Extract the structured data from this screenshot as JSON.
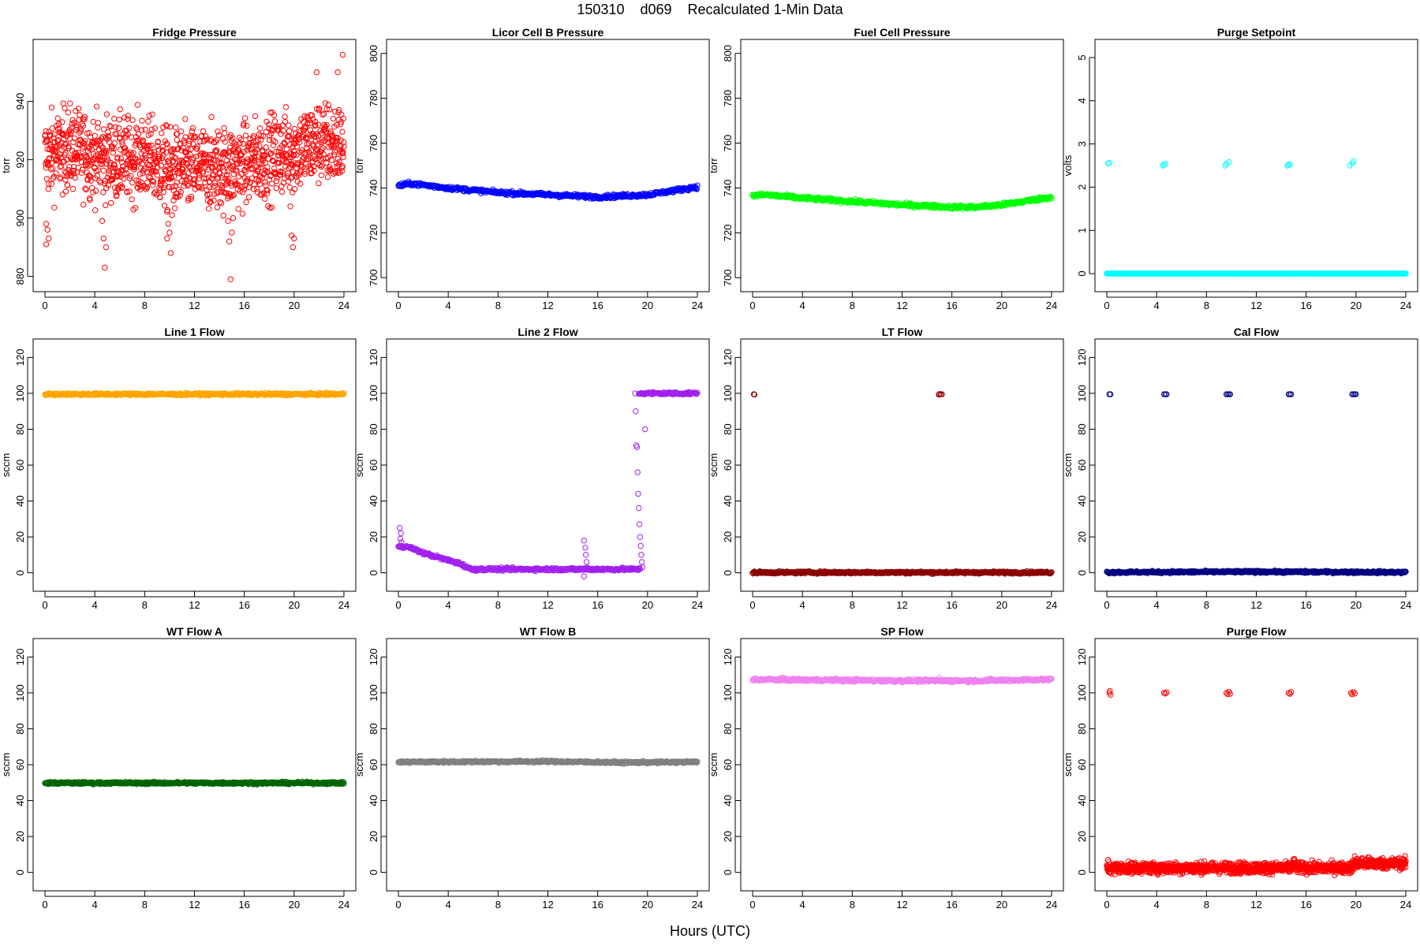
{
  "figure": {
    "title": "150310    d069    Recalculated 1-Min Data",
    "xlabel": "Hours (UTC)"
  },
  "chart_data": [
    {
      "type": "scatter",
      "title": "Fridge Pressure",
      "ylabel": "torr",
      "color": "#FF0000",
      "xlim": [
        0,
        24
      ],
      "ylim": [
        878,
        958
      ],
      "yticks": [
        880,
        900,
        920,
        940
      ],
      "xticks": [
        0,
        4,
        8,
        12,
        16,
        20,
        24
      ],
      "baseline": [
        [
          0,
          921
        ],
        [
          2,
          924
        ],
        [
          4,
          921
        ],
        [
          6,
          920
        ],
        [
          8,
          921
        ],
        [
          10,
          916
        ],
        [
          12,
          917
        ],
        [
          14,
          917
        ],
        [
          16,
          918
        ],
        [
          18,
          921
        ],
        [
          20,
          923
        ],
        [
          22,
          926
        ],
        [
          24,
          925
        ]
      ],
      "spread": 7,
      "outliers": [
        [
          0.1,
          891
        ],
        [
          0.1,
          898
        ],
        [
          0.2,
          896
        ],
        [
          0.3,
          893
        ],
        [
          4.6,
          899
        ],
        [
          4.7,
          893
        ],
        [
          4.8,
          883
        ],
        [
          4.9,
          890
        ],
        [
          9.8,
          893
        ],
        [
          9.9,
          898
        ],
        [
          10,
          895
        ],
        [
          10.1,
          888
        ],
        [
          10.2,
          901
        ],
        [
          14.7,
          899
        ],
        [
          14.8,
          892
        ],
        [
          14.9,
          879
        ],
        [
          15,
          895
        ],
        [
          15.1,
          900
        ],
        [
          19.7,
          904
        ],
        [
          19.8,
          894
        ],
        [
          19.9,
          890
        ],
        [
          20,
          893
        ],
        [
          21.8,
          950
        ],
        [
          23.5,
          950
        ],
        [
          23.9,
          956
        ]
      ]
    },
    {
      "type": "scatter",
      "title": "Licor Cell B Pressure",
      "ylabel": "torr",
      "color": "#0000FF",
      "xlim": [
        0,
        24
      ],
      "ylim": [
        698,
        802
      ],
      "yticks": [
        700,
        720,
        740,
        760,
        780,
        800
      ],
      "xticks": [
        0,
        4,
        8,
        12,
        16,
        20,
        24
      ],
      "baseline": [
        [
          0,
          741
        ],
        [
          1,
          742
        ],
        [
          4,
          740
        ],
        [
          8,
          738
        ],
        [
          12,
          737
        ],
        [
          16,
          736
        ],
        [
          18,
          736.5
        ],
        [
          20,
          737
        ],
        [
          24,
          740.5
        ]
      ],
      "spread": 0.4,
      "outliers": []
    },
    {
      "type": "scatter",
      "title": "Fuel Cell Pressure",
      "ylabel": "torr",
      "color": "#00FF00",
      "xlim": [
        0,
        24
      ],
      "ylim": [
        698,
        802
      ],
      "yticks": [
        700,
        720,
        740,
        760,
        780,
        800
      ],
      "xticks": [
        0,
        4,
        8,
        12,
        16,
        20,
        24
      ],
      "baseline": [
        [
          0,
          736.5
        ],
        [
          1,
          737
        ],
        [
          4,
          735.5
        ],
        [
          8,
          734
        ],
        [
          12,
          732.5
        ],
        [
          16,
          731.5
        ],
        [
          18,
          731.5
        ],
        [
          20,
          732.5
        ],
        [
          24,
          736
        ]
      ],
      "spread": 0.4,
      "outliers": []
    },
    {
      "type": "scatter",
      "title": "Purge Setpoint",
      "ylabel": "volts",
      "color": "#00FFFF",
      "xlim": [
        0,
        24
      ],
      "ylim": [
        -0.2,
        5.2
      ],
      "yticks": [
        0,
        1,
        2,
        3,
        4,
        5
      ],
      "xticks": [
        0,
        4,
        8,
        12,
        16,
        20,
        24
      ],
      "baseline": [
        [
          0,
          0
        ],
        [
          24,
          0
        ]
      ],
      "spread": 0,
      "outliers": [
        [
          0.1,
          2.55
        ],
        [
          0.2,
          2.56
        ],
        [
          4.5,
          2.5
        ],
        [
          4.6,
          2.52
        ],
        [
          4.7,
          2.54
        ],
        [
          9.5,
          2.5
        ],
        [
          9.6,
          2.54
        ],
        [
          9.8,
          2.58
        ],
        [
          14.5,
          2.5
        ],
        [
          14.6,
          2.52
        ],
        [
          14.7,
          2.53
        ],
        [
          19.5,
          2.5
        ],
        [
          19.7,
          2.55
        ],
        [
          19.8,
          2.6
        ]
      ]
    },
    {
      "type": "scatter",
      "title": "Line 1 Flow",
      "ylabel": "sccm",
      "color": "#FFA500",
      "xlim": [
        0,
        24
      ],
      "ylim": [
        -5,
        125
      ],
      "yticks": [
        0,
        20,
        40,
        60,
        80,
        100,
        120
      ],
      "xticks": [
        0,
        4,
        8,
        12,
        16,
        20,
        24
      ],
      "baseline": [
        [
          0,
          99.5
        ],
        [
          24,
          99.5
        ]
      ],
      "spread": 0.3,
      "outliers": []
    },
    {
      "type": "scatter",
      "title": "Line 2 Flow",
      "ylabel": "sccm",
      "color": "#A020F0",
      "xlim": [
        0,
        24
      ],
      "ylim": [
        -5,
        125
      ],
      "yticks": [
        0,
        20,
        40,
        60,
        80,
        100,
        120
      ],
      "xticks": [
        0,
        4,
        8,
        12,
        16,
        20,
        24
      ],
      "segments": [
        [
          [
            0,
            15
          ],
          [
            1,
            14
          ],
          [
            2,
            11
          ],
          [
            3,
            9
          ],
          [
            4,
            7
          ],
          [
            5,
            5
          ],
          [
            5.8,
            2
          ],
          [
            6,
            2
          ],
          [
            19.4,
            2
          ]
        ],
        [
          [
            19.3,
            100
          ],
          [
            24,
            100
          ]
        ]
      ],
      "spread": 0.4,
      "outliers": [
        [
          0.1,
          25
        ],
        [
          0.2,
          22
        ],
        [
          0.15,
          19
        ],
        [
          0.25,
          17
        ],
        [
          14.9,
          18
        ],
        [
          15,
          14
        ],
        [
          15.05,
          10
        ],
        [
          15.1,
          6
        ],
        [
          15.15,
          3
        ],
        [
          14.9,
          -2
        ],
        [
          19,
          100
        ],
        [
          19.05,
          90
        ],
        [
          19.1,
          71
        ],
        [
          19.15,
          70
        ],
        [
          19.2,
          56
        ],
        [
          19.25,
          44
        ],
        [
          19.3,
          36
        ],
        [
          19.35,
          27
        ],
        [
          19.4,
          20
        ],
        [
          19.45,
          15
        ],
        [
          19.5,
          10
        ],
        [
          19.55,
          6
        ],
        [
          19.6,
          3
        ],
        [
          19.8,
          80
        ]
      ]
    },
    {
      "type": "scatter",
      "title": "LT Flow",
      "ylabel": "sccm",
      "color": "#8B0000",
      "xlim": [
        0,
        24
      ],
      "ylim": [
        -5,
        125
      ],
      "yticks": [
        0,
        20,
        40,
        60,
        80,
        100,
        120
      ],
      "xticks": [
        0,
        4,
        8,
        12,
        16,
        20,
        24
      ],
      "baseline": [
        [
          0,
          0.2
        ],
        [
          24,
          0.2
        ]
      ],
      "spread": 0.3,
      "outliers": [
        [
          0.1,
          99.5
        ],
        [
          0.15,
          99.3
        ],
        [
          15,
          99.6
        ],
        [
          15.1,
          99.4
        ],
        [
          15.2,
          99.5
        ],
        [
          14.95,
          99.3
        ]
      ]
    },
    {
      "type": "scatter",
      "title": "Cal Flow",
      "ylabel": "sccm",
      "color": "#000080",
      "xlim": [
        0,
        24
      ],
      "ylim": [
        -5,
        125
      ],
      "yticks": [
        0,
        20,
        40,
        60,
        80,
        100,
        120
      ],
      "xticks": [
        0,
        4,
        8,
        12,
        16,
        20,
        24
      ],
      "baseline": [
        [
          0,
          0.3
        ],
        [
          12,
          0.6
        ],
        [
          24,
          0.3
        ]
      ],
      "spread": 0.3,
      "outliers": [
        [
          0.2,
          99.5
        ],
        [
          0.3,
          99.5
        ],
        [
          4.6,
          99.5
        ],
        [
          4.7,
          99.5
        ],
        [
          4.8,
          99.5
        ],
        [
          9.6,
          99.5
        ],
        [
          9.7,
          99.5
        ],
        [
          9.8,
          99.5
        ],
        [
          9.9,
          99.5
        ],
        [
          14.6,
          99.5
        ],
        [
          14.7,
          99.5
        ],
        [
          14.8,
          99.5
        ],
        [
          19.7,
          99.5
        ],
        [
          19.8,
          99.5
        ],
        [
          19.9,
          99.5
        ],
        [
          20,
          99.5
        ]
      ]
    },
    {
      "type": "scatter",
      "title": "WT Flow A",
      "ylabel": "sccm",
      "color": "#006400",
      "xlim": [
        0,
        24
      ],
      "ylim": [
        -5,
        125
      ],
      "yticks": [
        0,
        20,
        40,
        60,
        80,
        100,
        120
      ],
      "xticks": [
        0,
        4,
        8,
        12,
        16,
        20,
        24
      ],
      "baseline": [
        [
          0,
          49.8
        ],
        [
          24,
          49.8
        ]
      ],
      "spread": 0.3,
      "outliers": []
    },
    {
      "type": "scatter",
      "title": "WT Flow B",
      "ylabel": "sccm",
      "color": "#808080",
      "xlim": [
        0,
        24
      ],
      "ylim": [
        -5,
        125
      ],
      "yticks": [
        0,
        20,
        40,
        60,
        80,
        100,
        120
      ],
      "xticks": [
        0,
        4,
        8,
        12,
        16,
        20,
        24
      ],
      "baseline": [
        [
          0,
          61.5
        ],
        [
          12,
          61.8
        ],
        [
          18,
          61.2
        ],
        [
          24,
          61.5
        ]
      ],
      "spread": 0.3,
      "outliers": []
    },
    {
      "type": "scatter",
      "title": "SP Flow",
      "ylabel": "sccm",
      "color": "#EE82EE",
      "xlim": [
        0,
        24
      ],
      "ylim": [
        -5,
        125
      ],
      "yticks": [
        0,
        20,
        40,
        60,
        80,
        100,
        120
      ],
      "xticks": [
        0,
        4,
        8,
        12,
        16,
        20,
        24
      ],
      "baseline": [
        [
          0,
          107.5
        ],
        [
          12,
          106.8
        ],
        [
          18,
          106.8
        ],
        [
          24,
          107.5
        ]
      ],
      "spread": 0.4,
      "outliers": [
        [
          15,
          108.5
        ]
      ]
    },
    {
      "type": "scatter",
      "title": "Purge Flow",
      "ylabel": "sccm",
      "color": "#FF0000",
      "xlim": [
        0,
        24
      ],
      "ylim": [
        -5,
        125
      ],
      "yticks": [
        0,
        20,
        40,
        60,
        80,
        100,
        120
      ],
      "xticks": [
        0,
        4,
        8,
        12,
        16,
        20,
        24
      ],
      "baseline": [
        [
          0,
          2.5
        ],
        [
          14.8,
          2.5
        ],
        [
          15,
          5
        ],
        [
          15.3,
          2.5
        ],
        [
          19.7,
          2.5
        ],
        [
          19.8,
          5
        ],
        [
          24,
          5
        ]
      ],
      "spread": 1.5,
      "outliers": [
        [
          0.2,
          100
        ],
        [
          0.3,
          99
        ],
        [
          0.25,
          101
        ],
        [
          4.6,
          100
        ],
        [
          4.7,
          99.6
        ],
        [
          4.8,
          100.3
        ],
        [
          9.6,
          100
        ],
        [
          9.7,
          99.3
        ],
        [
          9.8,
          100.6
        ],
        [
          9.9,
          99.5
        ],
        [
          14.6,
          100
        ],
        [
          14.7,
          99.5
        ],
        [
          14.8,
          100.4
        ],
        [
          19.6,
          100
        ],
        [
          19.7,
          99.2
        ],
        [
          19.8,
          100.5
        ],
        [
          19.9,
          99.6
        ],
        [
          0.1,
          7
        ],
        [
          19.9,
          9
        ],
        [
          20.5,
          8
        ],
        [
          21,
          8.5
        ]
      ]
    }
  ]
}
